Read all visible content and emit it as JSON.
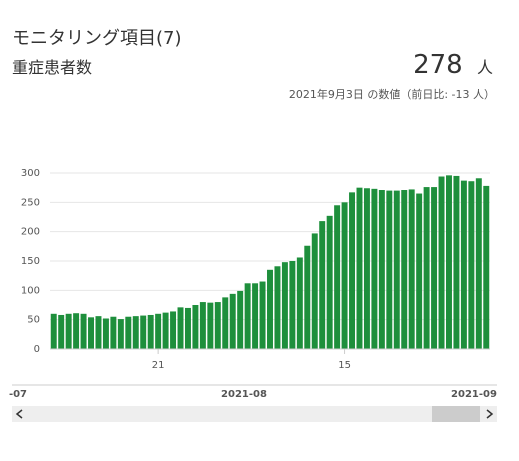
{
  "header": {
    "title": "モニタリング項目(7)",
    "subtitle": "重症患者数",
    "value": "278",
    "unit": "人",
    "note": "2021年9月3日 の数値（前日比: -13 人）"
  },
  "chart_data": {
    "type": "bar",
    "color": "#1e8f3c",
    "grid": true,
    "categories": [
      null,
      null,
      null,
      null,
      null,
      null,
      null,
      null,
      null,
      null,
      null,
      null,
      null,
      null,
      "21",
      null,
      null,
      null,
      null,
      null,
      null,
      null,
      null,
      null,
      null,
      null,
      null,
      null,
      null,
      null,
      null,
      null,
      null,
      null,
      null,
      null,
      null,
      null,
      null,
      "15",
      null,
      null,
      null,
      null,
      null,
      null,
      null,
      null,
      null,
      null,
      null,
      null,
      null,
      null,
      null,
      null,
      null,
      null,
      null
    ],
    "values": [
      60,
      58,
      60,
      61,
      60,
      54,
      56,
      52,
      55,
      51,
      55,
      56,
      57,
      58,
      60,
      62,
      64,
      71,
      70,
      75,
      80,
      79,
      80,
      88,
      94,
      99,
      112,
      112,
      115,
      135,
      141,
      148,
      150,
      156,
      176,
      197,
      218,
      227,
      245,
      250,
      267,
      275,
      274,
      273,
      271,
      270,
      270,
      271,
      272,
      265,
      276,
      276,
      294,
      296,
      295,
      287,
      286,
      291,
      278
    ],
    "ylim": [
      0,
      300
    ],
    "yticks": [
      0,
      50,
      100,
      150,
      200,
      250,
      300
    ]
  },
  "navigator": {
    "labels": [
      "-07",
      "2021-08",
      "2021-09"
    ]
  }
}
